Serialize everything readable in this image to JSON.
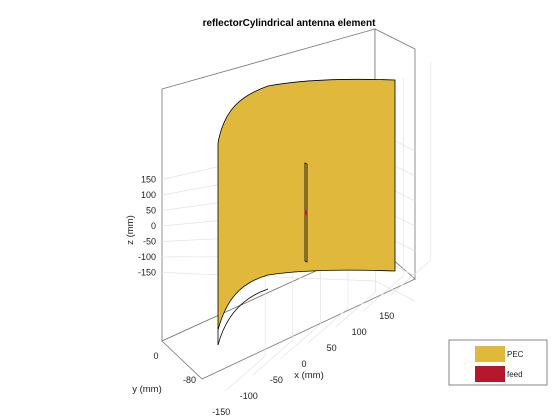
{
  "chart_data": {
    "type": "3d-surface",
    "title": "reflectorCylindrical antenna element",
    "xlabel": "x (mm)",
    "ylabel": "y (mm)",
    "zlabel": "z (mm)",
    "xlim": [
      -175,
      175
    ],
    "ylim": [
      -100,
      10
    ],
    "zlim": [
      -190,
      190
    ],
    "x_ticks": [
      -150,
      -100,
      -50,
      0,
      50,
      100,
      150
    ],
    "y_ticks": [
      -80,
      0
    ],
    "z_ticks": [
      -150,
      -100,
      -50,
      0,
      50,
      100,
      150
    ],
    "grid": true,
    "legend": {
      "placement": "bottom-right",
      "items": [
        {
          "label": "PEC",
          "color": "#DFB83C"
        },
        {
          "label": "feed",
          "color": "#B5172D"
        }
      ]
    },
    "reflector": {
      "material": "PEC",
      "width_x": [
        -150,
        150
      ],
      "height_z": [
        -150,
        150
      ],
      "focal_y": -80
    },
    "feed": {
      "label": "feed",
      "center_z": 0,
      "dipole_z": [
        -75,
        75
      ]
    }
  }
}
